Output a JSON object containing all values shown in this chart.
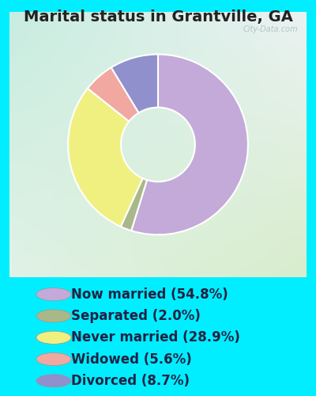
{
  "title": "Marital status in Grantville, GA",
  "slices": [
    54.8,
    2.0,
    28.9,
    5.6,
    8.7
  ],
  "labels": [
    "Now married (54.8%)",
    "Separated (2.0%)",
    "Never married (28.9%)",
    "Widowed (5.6%)",
    "Divorced (8.7%)"
  ],
  "colors": [
    "#c4aad8",
    "#a8b888",
    "#f0f080",
    "#f0a8a0",
    "#9090cc"
  ],
  "bg_color": "#00eeff",
  "chart_bg_topleft": "#c8ede0",
  "chart_bg_bottomright": "#d8edcc",
  "title_fontsize": 14,
  "title_color": "#222222",
  "legend_fontsize": 12,
  "legend_color": "#222244",
  "watermark": "City-Data.com",
  "startangle": 90,
  "donut_width": 0.5
}
